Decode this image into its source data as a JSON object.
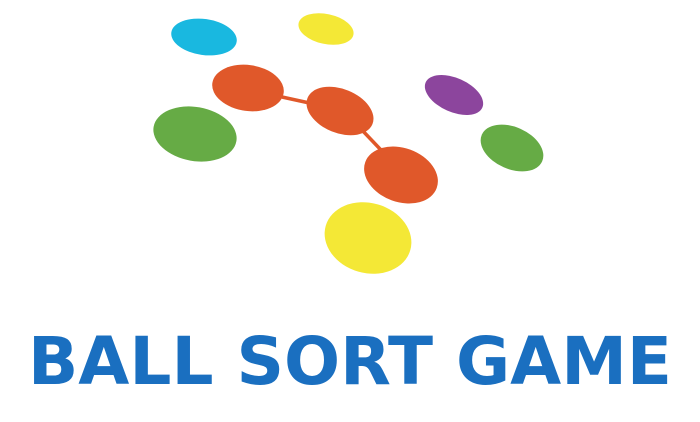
{
  "splash": {
    "title": "BALL SORT GAME",
    "title_color": "#1a6fc0",
    "background": "#ffffff"
  },
  "logo": {
    "icon": "molecule-balls-icon",
    "colors": {
      "orange": "#e0582a",
      "green": "#66ab45",
      "cyan": "#19b8e0",
      "yellow": "#f4e836",
      "purple": "#8c459d"
    },
    "balls": [
      {
        "name": "ball-cyan",
        "color": "cyan"
      },
      {
        "name": "ball-yellow-small",
        "color": "yellow"
      },
      {
        "name": "ball-orange-left",
        "color": "orange"
      },
      {
        "name": "ball-orange-center",
        "color": "orange"
      },
      {
        "name": "ball-orange-right",
        "color": "orange"
      },
      {
        "name": "ball-green-left",
        "color": "green"
      },
      {
        "name": "ball-purple",
        "color": "purple"
      },
      {
        "name": "ball-green-right",
        "color": "green"
      },
      {
        "name": "ball-yellow-large",
        "color": "yellow"
      }
    ]
  }
}
